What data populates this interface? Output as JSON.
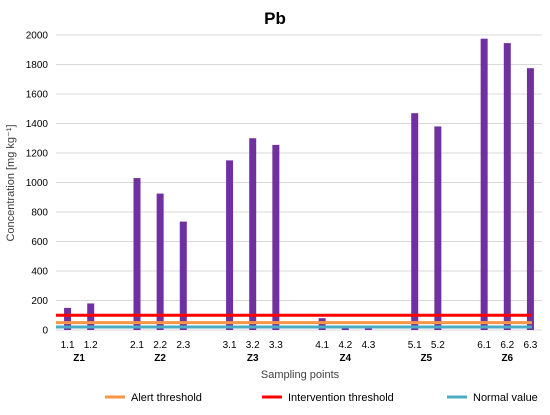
{
  "chart_data": {
    "type": "bar",
    "title": "Pb",
    "xlabel": "Sampling points",
    "ylabel": "Concentration [mg kg⁻¹]",
    "ylim": [
      0,
      2000
    ],
    "yticks": [
      0,
      200,
      400,
      600,
      800,
      1000,
      1200,
      1400,
      1600,
      1800,
      2000
    ],
    "grid": true,
    "legend_position": "bottom",
    "categories": [
      "1.1",
      "1.2",
      "2.1",
      "2.2",
      "2.3",
      "3.1",
      "3.2",
      "3.3",
      "4.1",
      "4.2",
      "4.3",
      "5.1",
      "5.2",
      "6.1",
      "6.2",
      "6.3"
    ],
    "groups": [
      {
        "label": "Z1",
        "categories": [
          "1.1",
          "1.2"
        ]
      },
      {
        "label": "Z2",
        "categories": [
          "2.1",
          "2.2",
          "2.3"
        ]
      },
      {
        "label": "Z3",
        "categories": [
          "3.1",
          "3.2",
          "3.3"
        ]
      },
      {
        "label": "Z4",
        "categories": [
          "4.1",
          "4.2",
          "4.3"
        ]
      },
      {
        "label": "Z5",
        "categories": [
          "5.1",
          "5.2"
        ]
      },
      {
        "label": "Z6",
        "categories": [
          "6.1",
          "6.2",
          "6.3"
        ]
      }
    ],
    "series": [
      {
        "values": [
          150,
          180,
          1030,
          925,
          735,
          1150,
          1300,
          1255,
          80,
          15,
          10,
          1470,
          1380,
          1975,
          1945,
          1775
        ],
        "color": "#7030a0"
      }
    ],
    "thresholds": [
      {
        "name": "Alert threshold",
        "value": 50,
        "color": "#f79646"
      },
      {
        "name": "Intervention threshold",
        "value": 100,
        "color": "#ff0000"
      },
      {
        "name": "Normal value",
        "value": 20,
        "color": "#4bacc6"
      }
    ]
  }
}
